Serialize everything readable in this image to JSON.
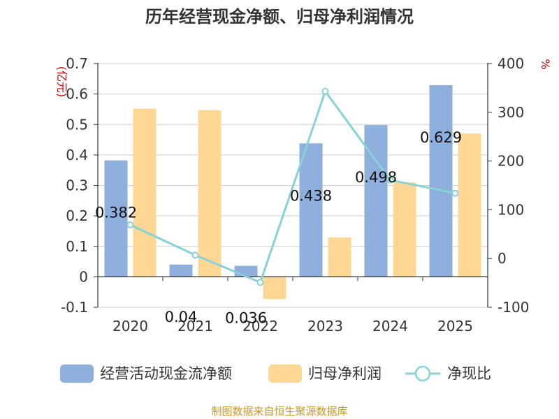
{
  "chart_data": {
    "type": "bar+line",
    "title": "历年经营现金净额、归母净利润情况",
    "categories": [
      "2020",
      "2021",
      "2022",
      "2023",
      "2024",
      "2025"
    ],
    "y_left": {
      "unit": "(亿元)",
      "ylim": [
        -0.1,
        0.7
      ],
      "ticks": [
        "-0.1",
        "0",
        "0.1",
        "0.2",
        "0.3",
        "0.4",
        "0.5",
        "0.6",
        "0.7"
      ]
    },
    "y_right": {
      "unit": "%",
      "ylim": [
        -100,
        400
      ],
      "ticks": [
        "-100",
        "0",
        "100",
        "200",
        "300",
        "400"
      ]
    },
    "series": [
      {
        "name": "经营活动现金流净额",
        "type": "bar",
        "axis": "left",
        "color": "#8eaedb",
        "values": [
          0.382,
          0.04,
          0.036,
          0.438,
          0.498,
          0.629
        ],
        "labels": [
          "0.382",
          "0.04",
          "0.036",
          "0.438",
          "0.498",
          "0.629"
        ]
      },
      {
        "name": "归母净利润",
        "type": "bar",
        "axis": "left",
        "color": "#ffd795",
        "values": [
          0.552,
          0.547,
          -0.073,
          0.129,
          0.31,
          0.47
        ]
      },
      {
        "name": "净现比",
        "type": "line",
        "axis": "right",
        "color": "#88d2d6",
        "values": [
          69,
          7,
          -49,
          343,
          161,
          134
        ]
      }
    ],
    "grid": true,
    "legend": "bottom"
  },
  "footer": "制图数据来自恒生聚源数据库"
}
